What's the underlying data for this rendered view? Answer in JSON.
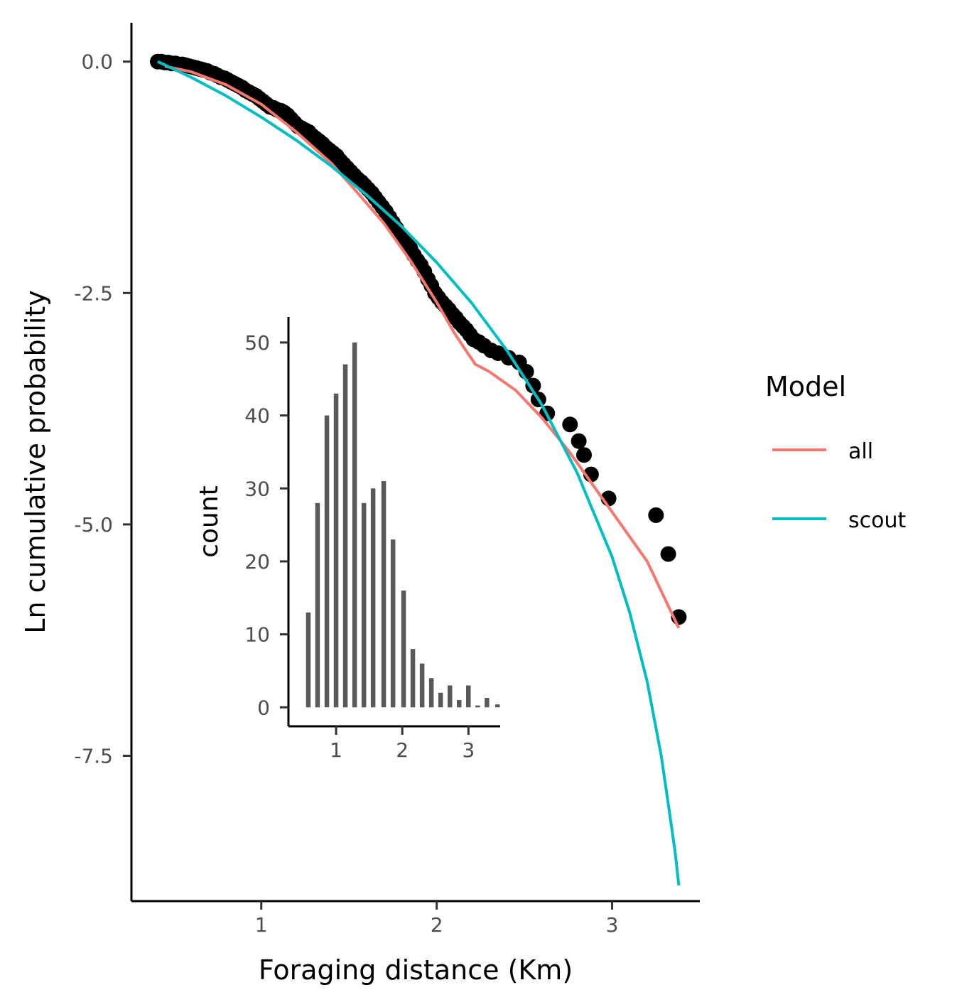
{
  "chart_data": [
    {
      "id": "main",
      "type": "scatter",
      "xlabel": "Foraging distance (Km)",
      "ylabel": "Ln cumulative probability",
      "xlim": [
        0.26,
        3.5
      ],
      "ylim": [
        -9.07,
        0.42
      ],
      "x_ticks": [
        1,
        2,
        3
      ],
      "x_tick_labels": [
        "1",
        "2",
        "3"
      ],
      "y_ticks": [
        0,
        -2.5,
        -5,
        -7.5
      ],
      "y_tick_labels": [
        "0.0",
        "-2.5",
        "-5.0",
        "-7.5"
      ],
      "grid": false,
      "points": [
        [
          0.41,
          0.0
        ],
        [
          0.43,
          0.0
        ],
        [
          0.45,
          -0.01
        ],
        [
          0.47,
          -0.01
        ],
        [
          0.49,
          -0.02
        ],
        [
          0.51,
          -0.02
        ],
        [
          0.53,
          -0.03
        ],
        [
          0.55,
          -0.03
        ],
        [
          0.57,
          -0.04
        ],
        [
          0.59,
          -0.05
        ],
        [
          0.61,
          -0.06
        ],
        [
          0.63,
          -0.07
        ],
        [
          0.65,
          -0.08
        ],
        [
          0.67,
          -0.09
        ],
        [
          0.69,
          -0.1
        ],
        [
          0.71,
          -0.12
        ],
        [
          0.73,
          -0.13
        ],
        [
          0.75,
          -0.15
        ],
        [
          0.77,
          -0.17
        ],
        [
          0.79,
          -0.18
        ],
        [
          0.81,
          -0.2
        ],
        [
          0.83,
          -0.22
        ],
        [
          0.85,
          -0.24
        ],
        [
          0.87,
          -0.26
        ],
        [
          0.89,
          -0.28
        ],
        [
          0.91,
          -0.31
        ],
        [
          0.93,
          -0.33
        ],
        [
          0.95,
          -0.35
        ],
        [
          0.97,
          -0.37
        ],
        [
          0.99,
          -0.4
        ],
        [
          1.01,
          -0.43
        ],
        [
          1.03,
          -0.46
        ],
        [
          1.05,
          -0.49
        ],
        [
          1.07,
          -0.5
        ],
        [
          1.09,
          -0.52
        ],
        [
          1.11,
          -0.53
        ],
        [
          1.13,
          -0.55
        ],
        [
          1.15,
          -0.58
        ],
        [
          1.17,
          -0.62
        ],
        [
          1.19,
          -0.66
        ],
        [
          1.21,
          -0.7
        ],
        [
          1.23,
          -0.72
        ],
        [
          1.25,
          -0.74
        ],
        [
          1.27,
          -0.76
        ],
        [
          1.29,
          -0.8
        ],
        [
          1.31,
          -0.83
        ],
        [
          1.33,
          -0.86
        ],
        [
          1.35,
          -0.89
        ],
        [
          1.37,
          -0.93
        ],
        [
          1.39,
          -0.96
        ],
        [
          1.41,
          -0.99
        ],
        [
          1.43,
          -1.02
        ],
        [
          1.45,
          -1.07
        ],
        [
          1.47,
          -1.11
        ],
        [
          1.49,
          -1.15
        ],
        [
          1.51,
          -1.19
        ],
        [
          1.53,
          -1.23
        ],
        [
          1.55,
          -1.27
        ],
        [
          1.57,
          -1.3
        ],
        [
          1.59,
          -1.34
        ],
        [
          1.61,
          -1.38
        ],
        [
          1.63,
          -1.42
        ],
        [
          1.65,
          -1.47
        ],
        [
          1.67,
          -1.52
        ],
        [
          1.69,
          -1.57
        ],
        [
          1.71,
          -1.62
        ],
        [
          1.73,
          -1.68
        ],
        [
          1.75,
          -1.74
        ],
        [
          1.77,
          -1.8
        ],
        [
          1.79,
          -1.86
        ],
        [
          1.81,
          -1.9
        ],
        [
          1.83,
          -1.95
        ],
        [
          1.85,
          -2.02
        ],
        [
          1.87,
          -2.09
        ],
        [
          1.89,
          -2.15
        ],
        [
          1.91,
          -2.2
        ],
        [
          1.93,
          -2.27
        ],
        [
          1.95,
          -2.35
        ],
        [
          1.97,
          -2.42
        ],
        [
          1.99,
          -2.5
        ],
        [
          2.01,
          -2.55
        ],
        [
          2.03,
          -2.6
        ],
        [
          2.05,
          -2.64
        ],
        [
          2.07,
          -2.68
        ],
        [
          2.09,
          -2.73
        ],
        [
          2.11,
          -2.77
        ],
        [
          2.13,
          -2.82
        ],
        [
          2.15,
          -2.86
        ],
        [
          2.17,
          -2.9
        ],
        [
          2.19,
          -2.95
        ],
        [
          2.21,
          -3.0
        ],
        [
          2.24,
          -3.03
        ],
        [
          2.27,
          -3.07
        ],
        [
          2.31,
          -3.12
        ],
        [
          2.35,
          -3.15
        ],
        [
          2.41,
          -3.2
        ],
        [
          2.47,
          -3.25
        ],
        [
          2.51,
          -3.35
        ],
        [
          2.55,
          -3.5
        ],
        [
          2.58,
          -3.65
        ],
        [
          2.63,
          -3.8
        ],
        [
          2.76,
          -3.92
        ],
        [
          2.81,
          -4.1
        ],
        [
          2.84,
          -4.25
        ],
        [
          2.88,
          -4.46
        ],
        [
          2.98,
          -4.72
        ],
        [
          3.25,
          -4.9
        ],
        [
          3.32,
          -5.32
        ],
        [
          3.38,
          -6.0
        ]
      ],
      "series": [
        {
          "name": "all",
          "color": "#F8766D",
          "x": [
            0.45,
            0.6,
            0.8,
            1.0,
            1.2,
            1.4,
            1.55,
            1.7,
            1.85,
            2.0,
            2.1,
            2.17,
            2.22,
            2.3,
            2.45,
            2.6,
            2.75,
            2.9,
            3.05,
            3.2,
            3.3,
            3.38
          ],
          "y": [
            -0.05,
            -0.11,
            -0.25,
            -0.46,
            -0.76,
            -1.1,
            -1.42,
            -1.75,
            -2.15,
            -2.6,
            -2.93,
            -3.13,
            -3.27,
            -3.35,
            -3.55,
            -3.85,
            -4.2,
            -4.6,
            -5.0,
            -5.4,
            -5.8,
            -6.12
          ]
        },
        {
          "name": "scout",
          "color": "#00BFC4",
          "x": [
            0.41,
            0.6,
            0.8,
            1.0,
            1.2,
            1.4,
            1.6,
            1.8,
            2.0,
            2.2,
            2.4,
            2.6,
            2.8,
            3.0,
            3.1,
            3.2,
            3.28,
            3.33,
            3.36,
            3.38
          ],
          "y": [
            0.0,
            -0.17,
            -0.37,
            -0.6,
            -0.85,
            -1.13,
            -1.44,
            -1.78,
            -2.17,
            -2.61,
            -3.12,
            -3.71,
            -4.44,
            -5.35,
            -5.95,
            -6.7,
            -7.5,
            -8.15,
            -8.55,
            -8.9
          ]
        }
      ]
    },
    {
      "id": "inset",
      "type": "bar",
      "xlabel": "",
      "ylabel": "count",
      "xlim": [
        0.28,
        3.48
      ],
      "ylim": [
        -2.6,
        53.5
      ],
      "x_ticks": [
        1,
        2,
        3
      ],
      "x_tick_labels": [
        "1",
        "2",
        "3"
      ],
      "y_ticks": [
        0,
        10,
        20,
        30,
        40,
        50
      ],
      "y_tick_labels": [
        "0",
        "10",
        "20",
        "30",
        "40",
        "50"
      ],
      "bar_width": 0.07,
      "grid": false,
      "color": "#595959",
      "x": [
        0.58,
        0.72,
        0.86,
        1.0,
        1.14,
        1.28,
        1.42,
        1.56,
        1.72,
        1.86,
        2.02,
        2.16,
        2.3,
        2.44,
        2.58,
        2.72,
        2.86,
        3.0,
        3.14,
        3.28,
        3.44
      ],
      "values": [
        13,
        28,
        40,
        43,
        47,
        50,
        28,
        30,
        31,
        23,
        16,
        8,
        6,
        4,
        2,
        3,
        1,
        3,
        0.25,
        1.3,
        0.4
      ]
    }
  ],
  "legend": {
    "title": "Model",
    "entries": [
      {
        "label": "all",
        "color": "#F8766D"
      },
      {
        "label": "scout",
        "color": "#00BFC4"
      }
    ]
  }
}
